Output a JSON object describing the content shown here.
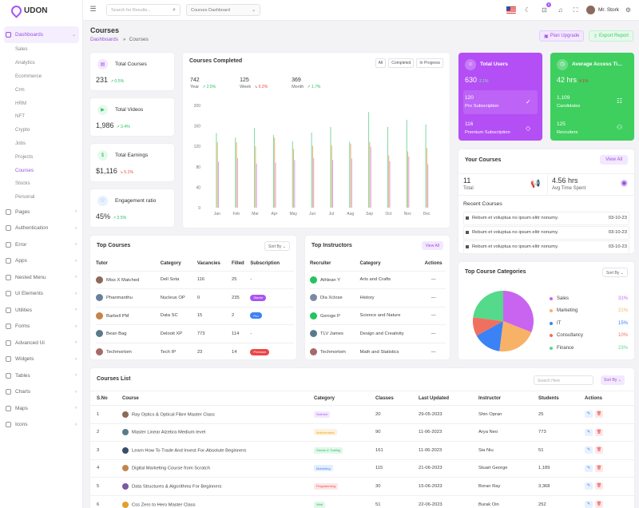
{
  "brand": {
    "name": "UDON"
  },
  "sidebar": {
    "items": [
      {
        "label": "Dashboards",
        "active": true,
        "expanded": true
      },
      {
        "label": "Pages"
      },
      {
        "label": "Authentication"
      },
      {
        "label": "Error"
      },
      {
        "label": "Apps"
      },
      {
        "label": "Nested Menu"
      },
      {
        "label": "Ui Elements"
      },
      {
        "label": "Utilities"
      },
      {
        "label": "Forms"
      },
      {
        "label": "Advanced Ui"
      },
      {
        "label": "Widgets"
      },
      {
        "label": "Tables"
      },
      {
        "label": "Charts"
      },
      {
        "label": "Maps"
      },
      {
        "label": "Icons"
      }
    ],
    "sub": [
      "Sales",
      "Analytics",
      "Ecommerce",
      "Crm",
      "HRM",
      "NFT",
      "Crypto",
      "Jobs",
      "Projects",
      "Courses",
      "Stocks",
      "Personal"
    ]
  },
  "topbar": {
    "search_placeholder": "Search for Results...",
    "dashboard_select": "Courses Dashboard",
    "notif_count": "5",
    "user": "Mr. Stork"
  },
  "page": {
    "title": "Courses",
    "breadcrumb_root": "Dashboards",
    "breadcrumb_sep": "»",
    "breadcrumb_current": "Courses",
    "plan_upgrade": "Plan Upgrade",
    "export_report": "Export Report"
  },
  "stats": [
    {
      "title": "Total Courses",
      "value": "231",
      "change": "0.5%",
      "dir": "up"
    },
    {
      "title": "Total Videos",
      "value": "1,986",
      "change": "3.4%",
      "dir": "up"
    },
    {
      "title": "Total Earnings",
      "value": "$1,116",
      "change": "5.1%",
      "dir": "down"
    },
    {
      "title": "Engagement ratio",
      "value": "45%",
      "change": "3.5%",
      "dir": "up"
    }
  ],
  "completed": {
    "title": "Courses Completed",
    "tabs": [
      "All",
      "Completed",
      "In Progress"
    ],
    "summary": [
      {
        "value": "742",
        "label": "Year",
        "change": "2.5%",
        "dir": "up"
      },
      {
        "value": "125",
        "label": "Week",
        "change": "0.2%",
        "dir": "down"
      },
      {
        "value": "369",
        "label": "Month",
        "change": "1.7%",
        "dir": "up"
      }
    ]
  },
  "chart_data": {
    "type": "bar",
    "categories": [
      "Jan",
      "Feb",
      "Mar",
      "Apr",
      "May",
      "Jun",
      "Jul",
      "Aug",
      "Sep",
      "Oct",
      "Nov",
      "Dec"
    ],
    "yticks": [
      "0",
      "40",
      "80",
      "120",
      "160",
      "200"
    ],
    "ylim": [
      0,
      200
    ],
    "series": [
      {
        "color": "#7dd8a4",
        "values": [
          146,
          137,
          156,
          142,
          130,
          147,
          158,
          129,
          187,
          158,
          172,
          163
        ]
      },
      {
        "color": "#f7b267",
        "values": [
          128,
          128,
          120,
          137,
          115,
          121,
          122,
          125,
          128,
          102,
          110,
          117
        ]
      },
      {
        "color": "#d8a3f0",
        "values": [
          90,
          97,
          86,
          88,
          93,
          97,
          93,
          96,
          119,
          91,
          100,
          85
        ]
      }
    ]
  },
  "users_card": {
    "title": "Total Users",
    "value": "630",
    "change": "2.1%",
    "row1_value": "120",
    "row1_label": "Pro Subscription",
    "row2_value": "116",
    "row2_label": "Premium Subscription",
    "color": "#b44ef5"
  },
  "access_card": {
    "title": "Average Access Ti...",
    "value": "42 hrs",
    "change": "4.1%",
    "row1_value": "1,109",
    "row1_label": "Candidates",
    "row2_value": "125",
    "row2_label": "Recruiters",
    "color": "#3ecf5f"
  },
  "your_courses": {
    "title": "Your Courses",
    "view_all": "View All",
    "total_value": "11",
    "total_label": "Total",
    "time_value": "4.56 hrs",
    "time_label": "Avg Time Spent",
    "recent_title": "Recent Courses",
    "recent": [
      {
        "text": "Rebum et voluptua no ipsum elitr nonumy.",
        "date": "03-10-23"
      },
      {
        "text": "Rebum et voluptua no ipsum elitr nonumy.",
        "date": "03-10-23"
      },
      {
        "text": "Rebum et voluptua no ipsum elitr nonumy.",
        "date": "03-10-23"
      }
    ]
  },
  "top_courses": {
    "title": "Top Courses",
    "sort": "Sort By",
    "headers": [
      "Tutor",
      "Category",
      "Vacancies",
      "Filled",
      "Subscription"
    ],
    "rows": [
      {
        "tutor": "Miss X Matched",
        "category": "Dell Sota",
        "vacancies": "116",
        "filled": "25",
        "sub": "-",
        "sub_color": ""
      },
      {
        "tutor": "Phanmanthu",
        "category": "Nucleus OP",
        "vacancies": "0",
        "filled": "235",
        "sub": "Starter",
        "sub_color": "#a855f7"
      },
      {
        "tutor": "Barbell PM",
        "category": "Data SC",
        "vacancies": "15",
        "filled": "2",
        "sub": "Pro",
        "sub_color": "#3b82f6"
      },
      {
        "tutor": "Bean Bag",
        "category": "Delooit XP",
        "vacancies": "773",
        "filled": "114",
        "sub": "-",
        "sub_color": ""
      },
      {
        "tutor": "Techmortom",
        "category": "Tech IP",
        "vacancies": "23",
        "filled": "14",
        "sub": "Premium",
        "sub_color": "#ef4444"
      }
    ]
  },
  "top_instructors": {
    "title": "Top Instructors",
    "view_all": "View All",
    "headers": [
      "Recruiter",
      "Category",
      "Actions"
    ],
    "rows": [
      {
        "name": "Athlean Y",
        "category": "Arts and Crafts",
        "action": "—"
      },
      {
        "name": "Dia Xclose",
        "category": "History",
        "action": "—"
      },
      {
        "name": "Geroge P",
        "category": "Science and Nature",
        "action": "—"
      },
      {
        "name": "TLV James",
        "category": "Design and Creativity",
        "action": "—"
      },
      {
        "name": "Techmortom",
        "category": "Math and Statistics",
        "action": "—"
      }
    ]
  },
  "categories_card": {
    "title": "Top Course Categories",
    "sort": "Sort By",
    "items": [
      {
        "label": "Sales",
        "pct": "31%",
        "color": "#c864f0"
      },
      {
        "label": "Marketing",
        "pct": "21%",
        "color": "#f7b267"
      },
      {
        "label": "IT",
        "pct": "15%",
        "color": "#3b82f6"
      },
      {
        "label": "Consultancy",
        "pct": "10%",
        "color": "#f07060"
      },
      {
        "label": "Finance",
        "pct": "23%",
        "color": "#55d98a"
      }
    ]
  },
  "courses_list": {
    "title": "Courses List",
    "search_placeholder": "Search Here",
    "sort": "Sort By",
    "headers": [
      "S.No",
      "Course",
      "Category",
      "Classes",
      "Last Updated",
      "Instructor",
      "Students",
      "Actions"
    ],
    "rows": [
      {
        "no": "1",
        "course": "Ray Optics & Optical Fibre Master Class",
        "category": "Science",
        "cat_color": "#a855f7",
        "classes": "20",
        "updated": "29-05-2023",
        "instructor": "Shin Opran",
        "students": "25"
      },
      {
        "no": "2",
        "course": "Master Linear Alzebra Medium level",
        "category": "Mathematics",
        "cat_color": "#f59e0b",
        "classes": "90",
        "updated": "11-06-2023",
        "instructor": "Arya Neo",
        "students": "773"
      },
      {
        "no": "3",
        "course": "Learn How To Trade And Invest For-Absolute Beginners",
        "category": "Stocks & Trading",
        "cat_color": "#22c55e",
        "classes": "161",
        "updated": "11-06-2023",
        "instructor": "Sia Niu",
        "students": "51"
      },
      {
        "no": "4",
        "course": "Digital Marketing Course from Scratch",
        "category": "Marketing",
        "cat_color": "#3b82f6",
        "classes": "115",
        "updated": "21-06-2023",
        "instructor": "Stuart George",
        "students": "1,189"
      },
      {
        "no": "5",
        "course": "Data Structures & Algorithms For Beginners",
        "category": "Programming",
        "cat_color": "#ef4444",
        "classes": "30",
        "updated": "15-06-2023",
        "instructor": "Boran Ray",
        "students": "3,368"
      },
      {
        "no": "6",
        "course": "Css Zero to Hero Master Class",
        "category": "Web",
        "cat_color": "#22c55e",
        "classes": "51",
        "updated": "22-06-2023",
        "instructor": "Burak Oin",
        "students": "252"
      }
    ]
  }
}
